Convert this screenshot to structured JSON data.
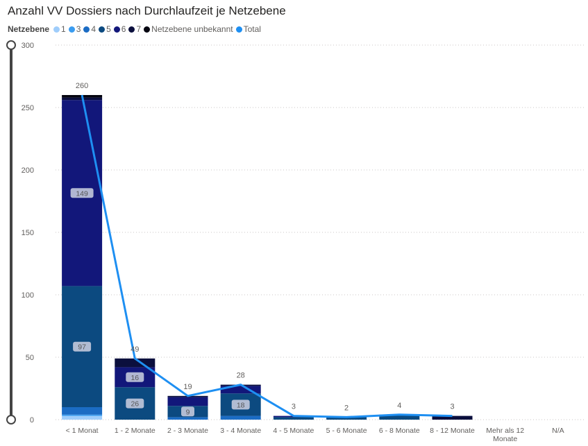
{
  "chart_data": {
    "type": "bar",
    "stacked": true,
    "title": "Anzahl VV Dossiers nach Durchlaufzeit je Netzebene",
    "legend_title": "Netzebene",
    "legend_position": "top-left",
    "xlabel": "",
    "ylabel": "",
    "ylim": [
      0,
      300
    ],
    "yticks": [
      0,
      50,
      100,
      150,
      200,
      250,
      300
    ],
    "grid": true,
    "categories": [
      "< 1 Monat",
      "1 - 2 Monate",
      "2 - 3 Monate",
      "3 - 4 Monate",
      "4 - 5 Monate",
      "5 - 6 Monate",
      "6 - 8 Monate",
      "8 - 12 Monate",
      "Mehr als 12 Monate",
      "N/A"
    ],
    "series": [
      {
        "name": "1",
        "color": "#9fcdfb",
        "values": [
          3,
          0,
          0,
          0,
          0,
          0,
          0,
          0,
          0,
          0
        ]
      },
      {
        "name": "3",
        "color": "#3a9cf0",
        "values": [
          1,
          0,
          0,
          0,
          0,
          0,
          0,
          0,
          0,
          0
        ]
      },
      {
        "name": "4",
        "color": "#1b6cc4",
        "values": [
          6,
          0,
          2,
          3,
          0,
          0,
          0,
          0,
          0,
          0
        ]
      },
      {
        "name": "5",
        "color": "#0c4a80",
        "values": [
          97,
          26,
          9,
          18,
          2,
          2,
          4,
          0,
          0,
          0
        ]
      },
      {
        "name": "6",
        "color": "#12177a",
        "values": [
          149,
          16,
          7,
          6,
          1,
          0,
          0,
          0,
          0,
          0
        ]
      },
      {
        "name": "7",
        "color": "#0b0f3d",
        "values": [
          2,
          7,
          1,
          1,
          0,
          0,
          0,
          3,
          0,
          0
        ]
      },
      {
        "name": "Netzebene unbekannt",
        "color": "#050510",
        "values": [
          2,
          0,
          0,
          0,
          0,
          0,
          0,
          0,
          0,
          0
        ]
      }
    ],
    "line_series": {
      "name": "Total",
      "color": "#1e8ff2",
      "values": [
        260,
        49,
        19,
        28,
        3,
        2,
        4,
        3,
        null,
        null
      ]
    },
    "inner_labels": [
      {
        "category": 0,
        "series": "6",
        "value": 149
      },
      {
        "category": 0,
        "series": "5",
        "value": 97
      },
      {
        "category": 1,
        "series": "6",
        "value": 16
      },
      {
        "category": 1,
        "series": "5",
        "value": 26
      },
      {
        "category": 2,
        "series": "5",
        "value": 9
      },
      {
        "category": 3,
        "series": "5",
        "value": 18
      }
    ]
  },
  "slider": {
    "label": "y-axis range slider"
  }
}
